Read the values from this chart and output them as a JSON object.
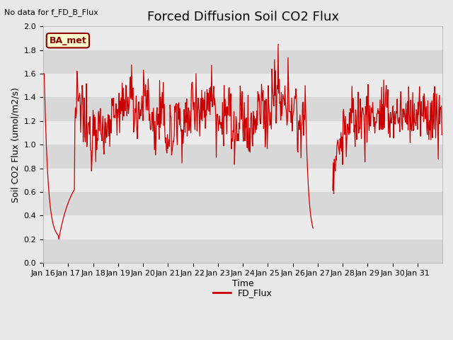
{
  "title": "Forced Diffusion Soil CO2 Flux",
  "xlabel": "Time",
  "ylabel": "Soil CO2 Flux (umol/m2/s)",
  "no_data_text": "No data for f_FD_B_Flux",
  "ba_met_label": "BA_met",
  "legend_label": "FD_Flux",
  "ylim": [
    0.0,
    2.0
  ],
  "yticks": [
    0.0,
    0.2,
    0.4,
    0.6,
    0.8,
    1.0,
    1.2,
    1.4,
    1.6,
    1.8,
    2.0
  ],
  "background_color": "#e8e8e8",
  "line_color": "#cc0000",
  "plot_bg_color": "#e0e0e0",
  "stripe_color_light": "#ebebeb",
  "stripe_color_dark": "#d8d8d8",
  "title_fontsize": 13,
  "axis_label_fontsize": 9,
  "tick_fontsize": 8,
  "ba_met_bg": "#ffffcc",
  "ba_met_border": "#8B0000",
  "ba_met_text_color": "#8B0000",
  "no_data_fontsize": 8,
  "legend_fontsize": 9
}
